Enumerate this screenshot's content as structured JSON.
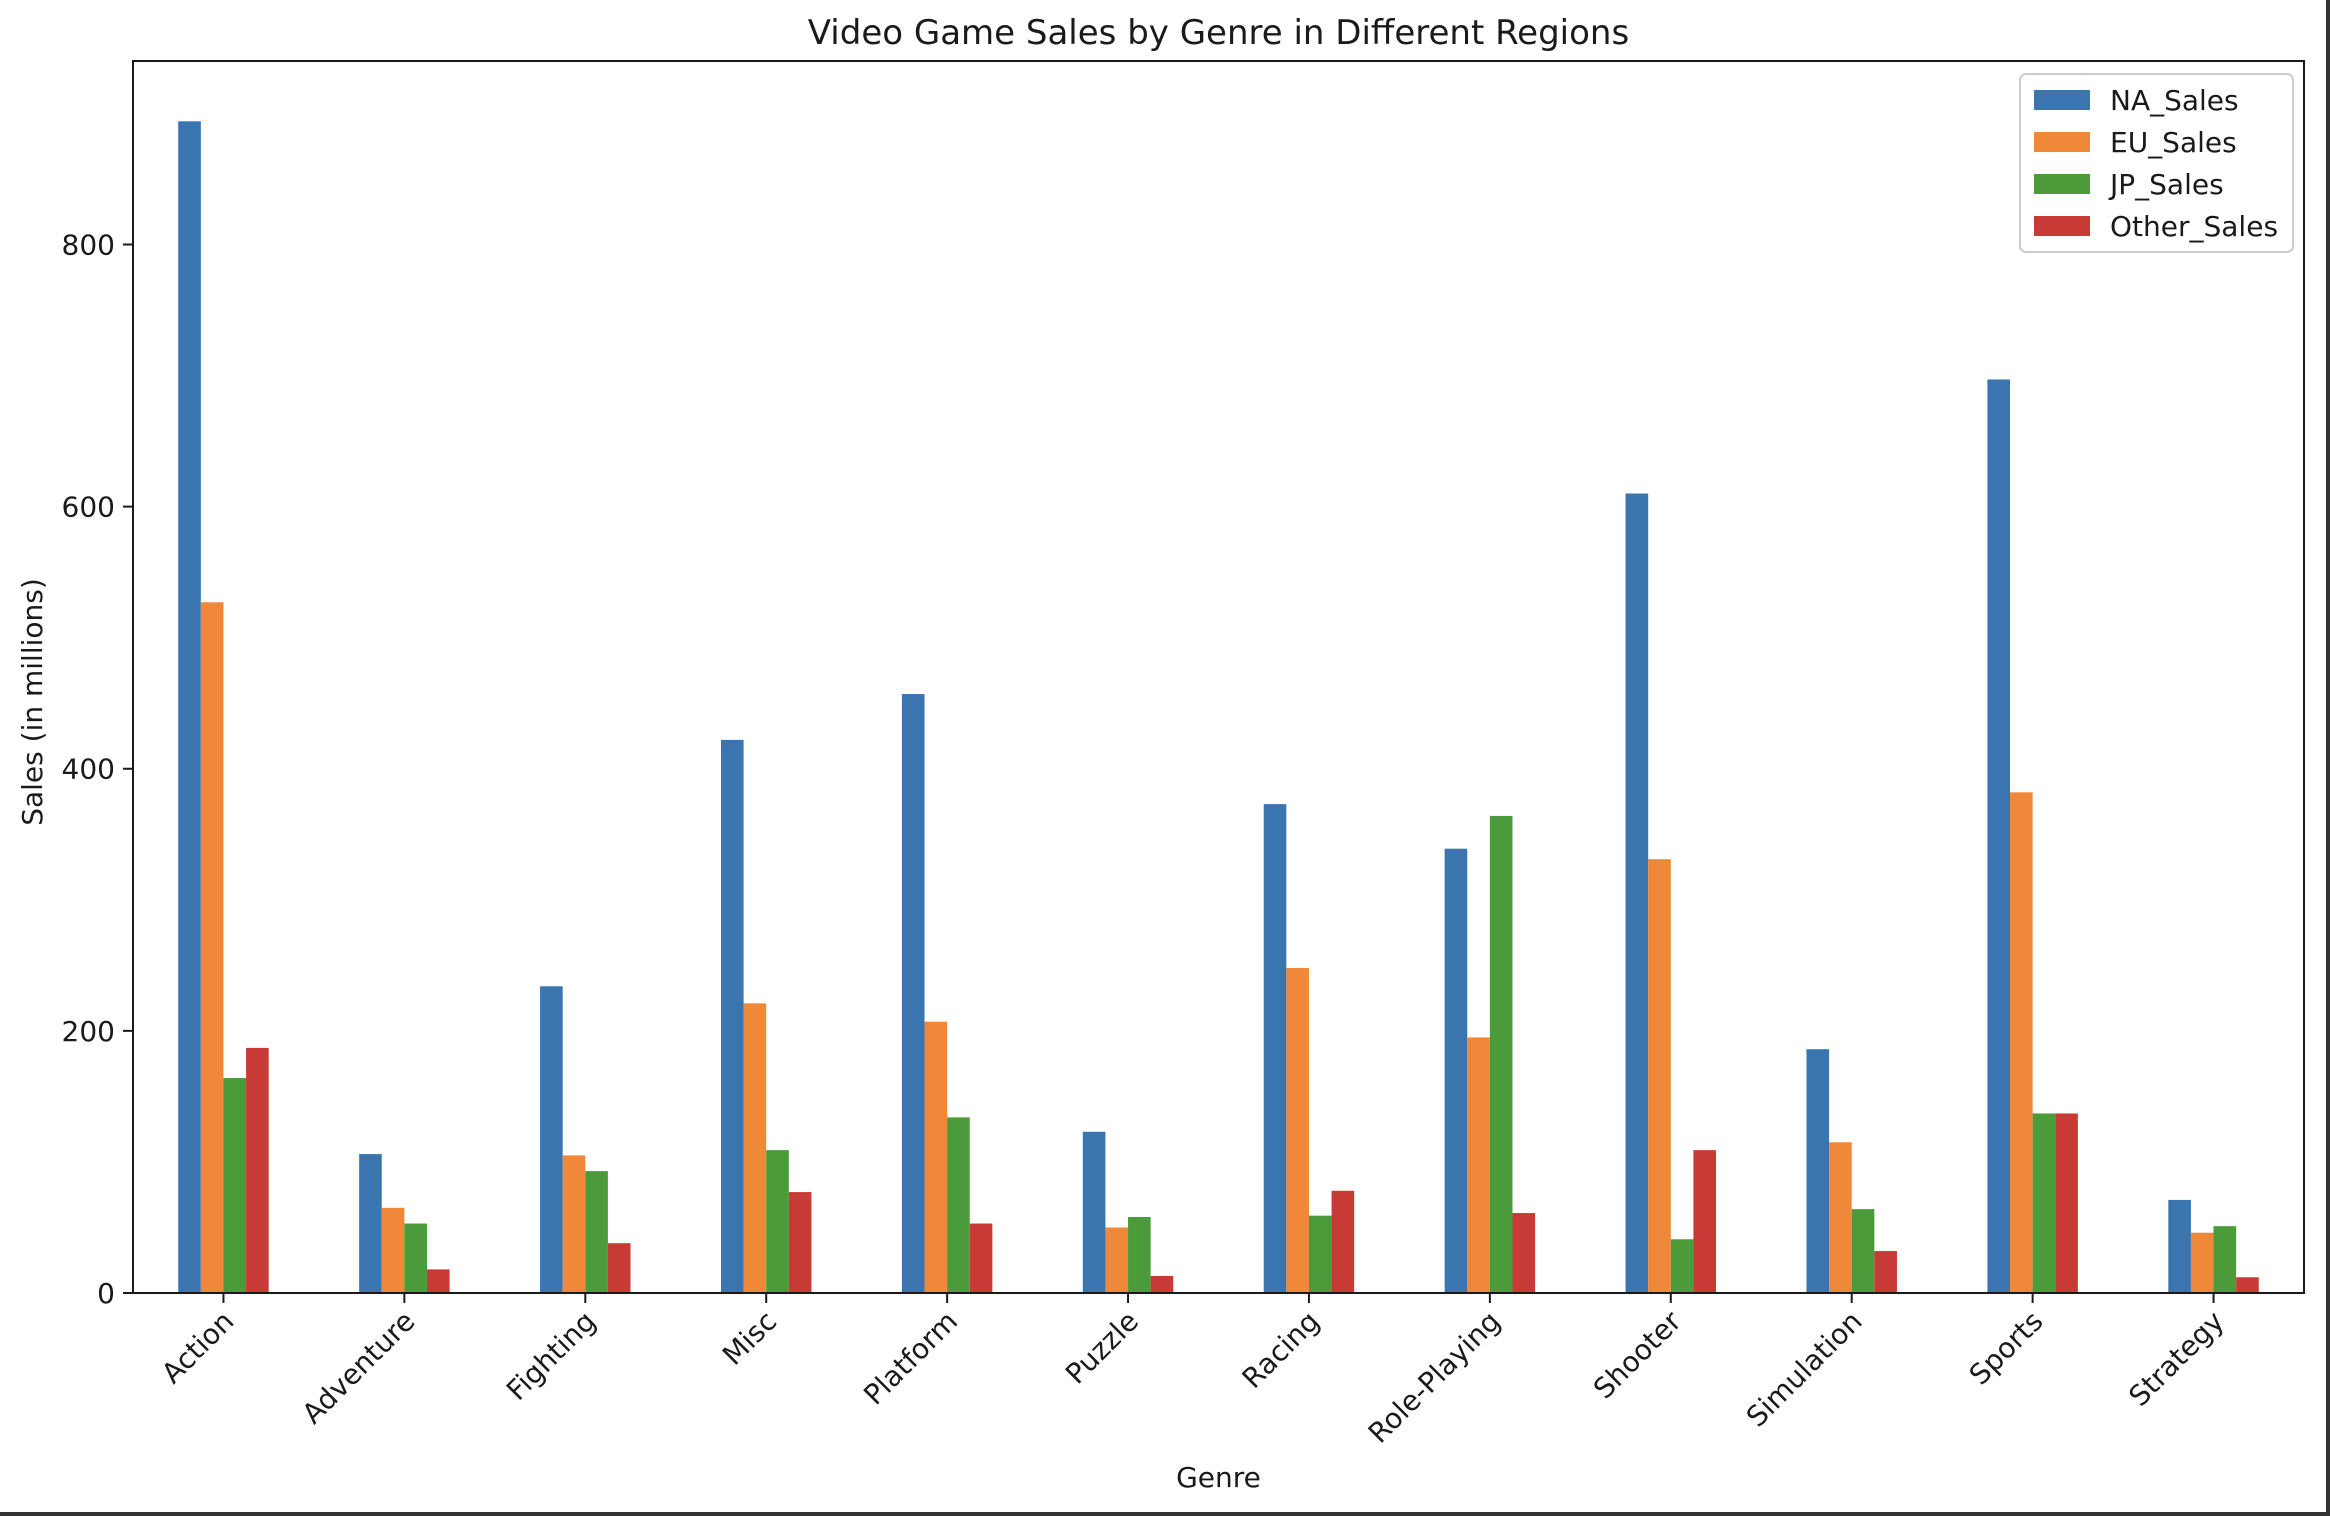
{
  "chart_data": {
    "type": "bar",
    "title": "Video Game Sales by Genre in Different Regions",
    "xlabel": "Genre",
    "ylabel": "Sales (in millions)",
    "ylim": [
      0,
      940
    ],
    "yticks": [
      0,
      200,
      400,
      600,
      800
    ],
    "grid": false,
    "legend_position": "top-right",
    "categories": [
      "Action",
      "Adventure",
      "Fighting",
      "Misc",
      "Platform",
      "Puzzle",
      "Racing",
      "Role-Playing",
      "Shooter",
      "Simulation",
      "Sports",
      "Strategy"
    ],
    "series": [
      {
        "name": "NA_Sales",
        "color": "#3a75b0",
        "values": [
          894,
          106,
          234,
          422,
          457,
          123,
          373,
          339,
          610,
          186,
          697,
          71
        ]
      },
      {
        "name": "EU_Sales",
        "color": "#f0883a",
        "values": [
          527,
          65,
          105,
          221,
          207,
          50,
          248,
          195,
          331,
          115,
          382,
          46
        ]
      },
      {
        "name": "JP_Sales",
        "color": "#4c9b3b",
        "values": [
          164,
          53,
          93,
          109,
          134,
          58,
          59,
          364,
          41,
          64,
          137,
          51
        ]
      },
      {
        "name": "Other_Sales",
        "color": "#c83a35",
        "values": [
          187,
          18,
          38,
          77,
          53,
          13,
          78,
          61,
          109,
          32,
          137,
          12
        ]
      }
    ]
  }
}
